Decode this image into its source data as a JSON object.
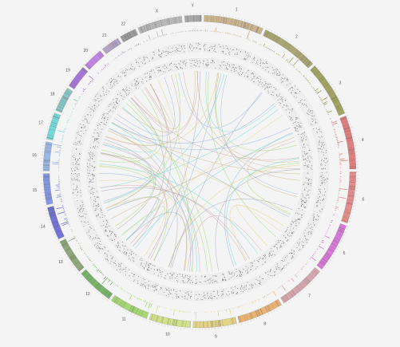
{
  "chromosomes": [
    {
      "label": "1",
      "color": "#c9b48e"
    },
    {
      "label": "2",
      "color": "#aaa774"
    },
    {
      "label": "3",
      "color": "#a3a464"
    },
    {
      "label": "4",
      "color": "#e07f7f"
    },
    {
      "label": "5",
      "color": "#e58c8c"
    },
    {
      "label": "6",
      "color": "#d67ad6"
    },
    {
      "label": "7",
      "color": "#d4a8ae"
    },
    {
      "label": "8",
      "color": "#e8b374"
    },
    {
      "label": "9",
      "color": "#e3d487"
    },
    {
      "label": "10",
      "color": "#d2e28a"
    },
    {
      "label": "11",
      "color": "#a5d875"
    },
    {
      "label": "12",
      "color": "#79b46a"
    },
    {
      "label": "13",
      "color": "#8fa77a"
    },
    {
      "label": "14",
      "color": "#7474d6"
    },
    {
      "label": "15",
      "color": "#8596e2"
    },
    {
      "label": "16",
      "color": "#9ab6e2"
    },
    {
      "label": "17",
      "color": "#76d9d9"
    },
    {
      "label": "18",
      "color": "#8ac4c4"
    },
    {
      "label": "19",
      "color": "#a677d6"
    },
    {
      "label": "20",
      "color": "#c385e3"
    },
    {
      "label": "21",
      "color": "#b4a5c4"
    },
    {
      "label": "22",
      "color": "#9a9a9a"
    },
    {
      "label": "X",
      "color": "#b8b8b8"
    },
    {
      "label": "Y",
      "color": "#a8a8a8"
    }
  ]
}
